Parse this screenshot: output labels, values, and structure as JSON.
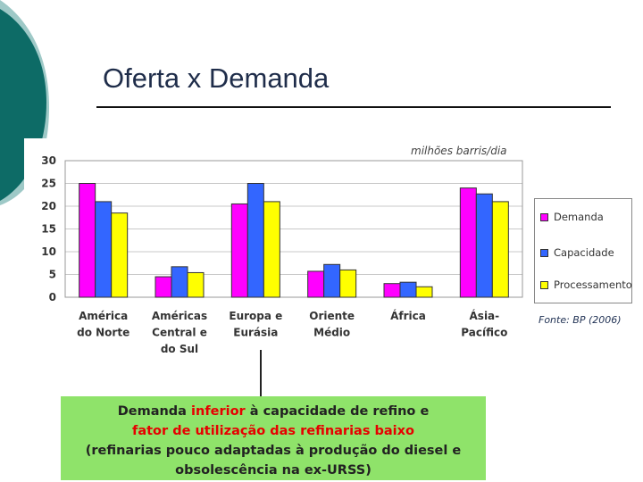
{
  "slide": {
    "title": "Oferta x Demanda"
  },
  "colors": {
    "demanda": "#ff00ff",
    "capacidade": "#3366ff",
    "processamento": "#ffff00",
    "callout_bg": "#8fe36a",
    "highlight": "#e60000",
    "teal": "#0d6b66",
    "teal_light": "#9ec9c7"
  },
  "chart_data": {
    "type": "bar",
    "unit_label": "milhões barris/dia",
    "categories": [
      [
        "América",
        "do Norte"
      ],
      [
        "Américas",
        "Central e",
        "do Sul"
      ],
      [
        "Europa e",
        "Eurásia"
      ],
      [
        "Oriente",
        "Médio"
      ],
      [
        "África"
      ],
      [
        "Ásia-",
        "Pacífico"
      ]
    ],
    "series": [
      {
        "name": "Demanda",
        "values": [
          25,
          4.5,
          20.5,
          5.7,
          3,
          24
        ]
      },
      {
        "name": "Capacidade",
        "values": [
          21,
          6.7,
          25,
          7.2,
          3.3,
          22.7
        ]
      },
      {
        "name": "Processamento",
        "values": [
          18.5,
          5.4,
          21,
          6,
          2.3,
          21
        ]
      }
    ],
    "ylim": [
      0,
      30
    ],
    "yticks": [
      0,
      5,
      10,
      15,
      20,
      25,
      30
    ],
    "grid": true,
    "legend_position": "right",
    "source": "Fonte: BP (2006)"
  },
  "callout": {
    "line1_a": "Demanda ",
    "line1_b": "inferior",
    "line1_c": " à capacidade de refino e",
    "line2": "fator de utilização das refinarias baixo",
    "line3": "(refinarias pouco adaptadas à produção do diesel e",
    "line4": "obsolescência na ex-URSS)"
  }
}
